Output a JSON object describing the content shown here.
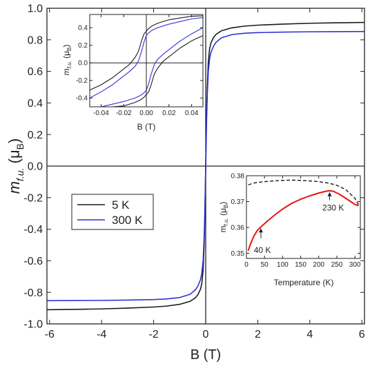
{
  "chart_data": [
    {
      "type": "line",
      "role": "main",
      "xlabel": "B (T)",
      "ylabel_main": "m",
      "ylabel_sub": "f.u.",
      "ylabel_unit_open": " (μ",
      "ylabel_unit_sub": "B",
      "ylabel_unit_close": ")",
      "xlim": [
        -6.1,
        6.1
      ],
      "ylim": [
        -1.0,
        1.0
      ],
      "xticks": [
        -6,
        -4,
        -2,
        0,
        2,
        4,
        6
      ],
      "yticks": [
        -1.0,
        -0.8,
        -0.6,
        -0.4,
        -0.2,
        0.0,
        0.2,
        0.4,
        0.6,
        0.8,
        1.0
      ],
      "tick_labels_x": [
        "-6",
        "-4",
        "-2",
        "0",
        "2",
        "4",
        "6"
      ],
      "tick_labels_y": [
        "-1.0",
        "-0.8",
        "-0.6",
        "-0.4",
        "-0.2",
        "0.0",
        "0.2",
        "0.4",
        "0.6",
        "0.8",
        "1.0"
      ],
      "zero_lines": true,
      "legend_placement": "left-middle",
      "series": [
        {
          "name": "5 K",
          "color": "#1a1a1a",
          "x": [
            -6.1,
            -5,
            -4,
            -3,
            -2,
            -1.5,
            -1,
            -0.6,
            -0.4,
            -0.3,
            -0.2,
            -0.15,
            -0.1,
            -0.06,
            -0.03,
            0,
            0.03,
            0.06,
            0.1,
            0.15,
            0.2,
            0.3,
            0.4,
            0.6,
            1,
            1.5,
            2,
            3,
            4,
            5,
            6.1
          ],
          "y": [
            -0.91,
            -0.908,
            -0.905,
            -0.9,
            -0.893,
            -0.887,
            -0.876,
            -0.857,
            -0.835,
            -0.815,
            -0.78,
            -0.745,
            -0.66,
            -0.5,
            -0.3,
            0,
            0.3,
            0.5,
            0.66,
            0.745,
            0.78,
            0.815,
            0.835,
            0.857,
            0.876,
            0.887,
            0.893,
            0.9,
            0.905,
            0.908,
            0.91
          ]
        },
        {
          "name": "300 K",
          "color": "#2f2fd6",
          "x": [
            -6.1,
            -5,
            -4,
            -3,
            -2,
            -1.5,
            -1,
            -0.6,
            -0.4,
            -0.3,
            -0.2,
            -0.15,
            -0.1,
            -0.06,
            -0.03,
            0,
            0.03,
            0.06,
            0.1,
            0.15,
            0.2,
            0.3,
            0.4,
            0.6,
            1,
            1.5,
            2,
            3,
            4,
            5,
            6.1
          ],
          "y": [
            -0.853,
            -0.852,
            -0.851,
            -0.849,
            -0.846,
            -0.842,
            -0.833,
            -0.812,
            -0.785,
            -0.76,
            -0.72,
            -0.68,
            -0.6,
            -0.45,
            -0.26,
            0,
            0.26,
            0.45,
            0.6,
            0.68,
            0.72,
            0.76,
            0.785,
            0.812,
            0.833,
            0.842,
            0.846,
            0.849,
            0.851,
            0.852,
            0.853
          ]
        }
      ]
    },
    {
      "type": "line",
      "role": "inset-hysteresis",
      "xlabel": "B (T)",
      "ylabel_main": "m",
      "ylabel_sub": "f.u.",
      "ylabel_unit_open": " (μ",
      "ylabel_unit_sub": "B",
      "ylabel_unit_close": ")",
      "xlim": [
        -0.05,
        0.05
      ],
      "ylim": [
        -0.5,
        0.55
      ],
      "xticks": [
        -0.04,
        -0.02,
        0.0,
        0.02,
        0.04
      ],
      "yticks": [
        -0.4,
        -0.2,
        0.0,
        0.2,
        0.4
      ],
      "tick_labels_x": [
        "-0.04",
        "-0.02",
        "0.00",
        "0.02",
        "0.04"
      ],
      "tick_labels_y": [
        "-0.4",
        "-0.2",
        "0.0",
        "0.2",
        "0.4"
      ],
      "zero_lines": true,
      "series": [
        {
          "name": "5 K descending",
          "color": "#1a1a1a",
          "x": [
            -0.05,
            -0.04,
            -0.03,
            -0.02,
            -0.015,
            -0.01,
            -0.007,
            -0.004,
            -0.002,
            0.0,
            0.002,
            0.005,
            0.01,
            0.02,
            0.03,
            0.04,
            0.05
          ],
          "y": [
            -0.31,
            -0.25,
            -0.17,
            -0.07,
            -0.02,
            0.06,
            0.13,
            0.26,
            0.33,
            0.36,
            0.39,
            0.42,
            0.45,
            0.49,
            0.51,
            0.53,
            0.535
          ]
        },
        {
          "name": "5 K ascending",
          "color": "#1a1a1a",
          "x": [
            -0.05,
            -0.04,
            -0.03,
            -0.02,
            -0.01,
            -0.005,
            -0.002,
            0.0,
            0.002,
            0.004,
            0.007,
            0.01,
            0.015,
            0.02,
            0.03,
            0.04,
            0.05
          ],
          "y": [
            -0.535,
            -0.53,
            -0.51,
            -0.49,
            -0.45,
            -0.42,
            -0.39,
            -0.36,
            -0.33,
            -0.26,
            -0.13,
            -0.06,
            0.02,
            0.07,
            0.17,
            0.25,
            0.31
          ]
        },
        {
          "name": "300 K descending",
          "color": "#2f2fd6",
          "x": [
            -0.05,
            -0.04,
            -0.03,
            -0.02,
            -0.015,
            -0.01,
            -0.007,
            -0.004,
            -0.002,
            0.0,
            0.002,
            0.005,
            0.01,
            0.02,
            0.03,
            0.04,
            0.05
          ],
          "y": [
            -0.4,
            -0.33,
            -0.25,
            -0.15,
            -0.1,
            -0.04,
            0.02,
            0.14,
            0.24,
            0.31,
            0.34,
            0.37,
            0.4,
            0.44,
            0.47,
            0.5,
            0.515
          ]
        },
        {
          "name": "300 K ascending",
          "color": "#2f2fd6",
          "x": [
            -0.05,
            -0.04,
            -0.03,
            -0.02,
            -0.01,
            -0.005,
            -0.002,
            0.0,
            0.002,
            0.004,
            0.007,
            0.01,
            0.015,
            0.02,
            0.03,
            0.04,
            0.05
          ],
          "y": [
            -0.515,
            -0.5,
            -0.47,
            -0.44,
            -0.4,
            -0.37,
            -0.34,
            -0.31,
            -0.24,
            -0.14,
            -0.02,
            0.04,
            0.1,
            0.15,
            0.25,
            0.33,
            0.4
          ]
        }
      ]
    },
    {
      "type": "line",
      "role": "inset-temperature",
      "xlabel": "Temperature (K)",
      "ylabel_main": "m",
      "ylabel_sub": "f.u.",
      "ylabel_unit_open": " (μ",
      "ylabel_unit_sub": "B",
      "ylabel_unit_close": ")",
      "xlim": [
        0,
        315
      ],
      "ylim": [
        0.348,
        0.38
      ],
      "xticks": [
        0,
        50,
        100,
        150,
        200,
        250,
        300
      ],
      "yticks": [
        0.35,
        0.36,
        0.37,
        0.38
      ],
      "tick_labels_x": [
        "0",
        "50",
        "100",
        "150",
        "200",
        "250",
        "300"
      ],
      "tick_labels_y": [
        "0.35",
        "0.36",
        "0.37",
        "0.38"
      ],
      "series": [
        {
          "name": "dashed",
          "color": "#1a1a1a",
          "dashed": true,
          "x": [
            5,
            25,
            50,
            75,
            100,
            125,
            150,
            175,
            200,
            225,
            250,
            275,
            300,
            310
          ],
          "y": [
            0.3765,
            0.3773,
            0.3777,
            0.378,
            0.3782,
            0.3783,
            0.3782,
            0.378,
            0.3777,
            0.3772,
            0.3763,
            0.3746,
            0.3713,
            0.3688
          ]
        },
        {
          "name": "red",
          "color": "#e8120c",
          "dashed": false,
          "x": [
            5,
            10,
            20,
            30,
            40,
            60,
            80,
            100,
            125,
            150,
            175,
            200,
            220,
            230,
            240,
            255,
            270,
            285,
            300,
            310
          ],
          "y": [
            0.351,
            0.3532,
            0.3565,
            0.3588,
            0.3602,
            0.3627,
            0.365,
            0.3671,
            0.3693,
            0.3709,
            0.3722,
            0.3733,
            0.374,
            0.3742,
            0.374,
            0.373,
            0.3717,
            0.3703,
            0.3689,
            0.3684
          ]
        }
      ],
      "annotations": [
        {
          "text": "40 K",
          "x": 40,
          "y": 0.3602,
          "label_x": 44,
          "label_y": 0.3502,
          "arrow_from_y": 0.3558
        },
        {
          "text": "230 K",
          "x": 230,
          "y": 0.3742,
          "label_x": 240,
          "label_y": 0.3665,
          "arrow_from_y": 0.3705
        }
      ]
    }
  ],
  "legend": {
    "items": [
      {
        "name": "5 K",
        "color": "#1a1a1a"
      },
      {
        "name": "300 K",
        "color": "#2f2fd6"
      }
    ]
  }
}
